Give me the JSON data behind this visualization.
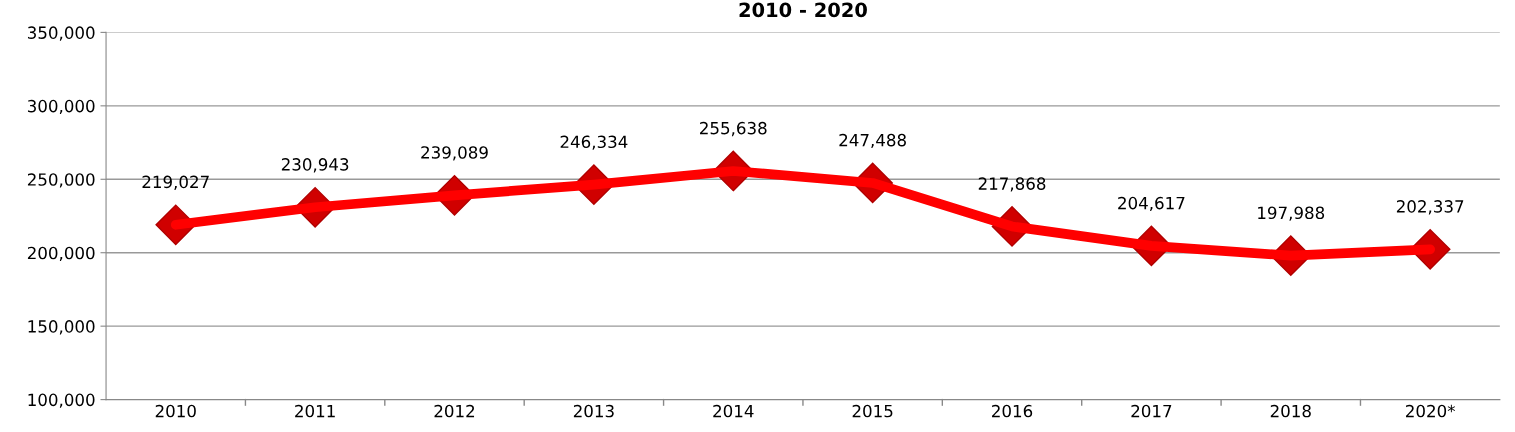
{
  "chart_data": {
    "type": "line",
    "title": "2010 - 2020",
    "categories": [
      "2010",
      "2011",
      "2012",
      "2013",
      "2014",
      "2015",
      "2016",
      "2017",
      "2018",
      "2020*"
    ],
    "series": [
      {
        "color": "#ff0000",
        "values": [
          219027,
          230943,
          239089,
          246334,
          255638,
          247488,
          217868,
          204617,
          197988,
          202337
        ],
        "value_labels": [
          "219,027",
          "230,943",
          "239,089",
          "246,334",
          "255,638",
          "247,488",
          "217,868",
          "204,617",
          "197,988",
          "202,337"
        ]
      }
    ],
    "ylim": [
      100000,
      350000
    ],
    "yticks": [
      {
        "value": 100000,
        "label": "100,000"
      },
      {
        "value": 150000,
        "label": "150,000"
      },
      {
        "value": 200000,
        "label": "200,000"
      },
      {
        "value": 250000,
        "label": "250,000"
      },
      {
        "value": 300000,
        "label": "300,000"
      },
      {
        "value": 350000,
        "label": "350,000"
      }
    ],
    "grid": "y",
    "marker": "diamond",
    "line_style": "solid"
  }
}
